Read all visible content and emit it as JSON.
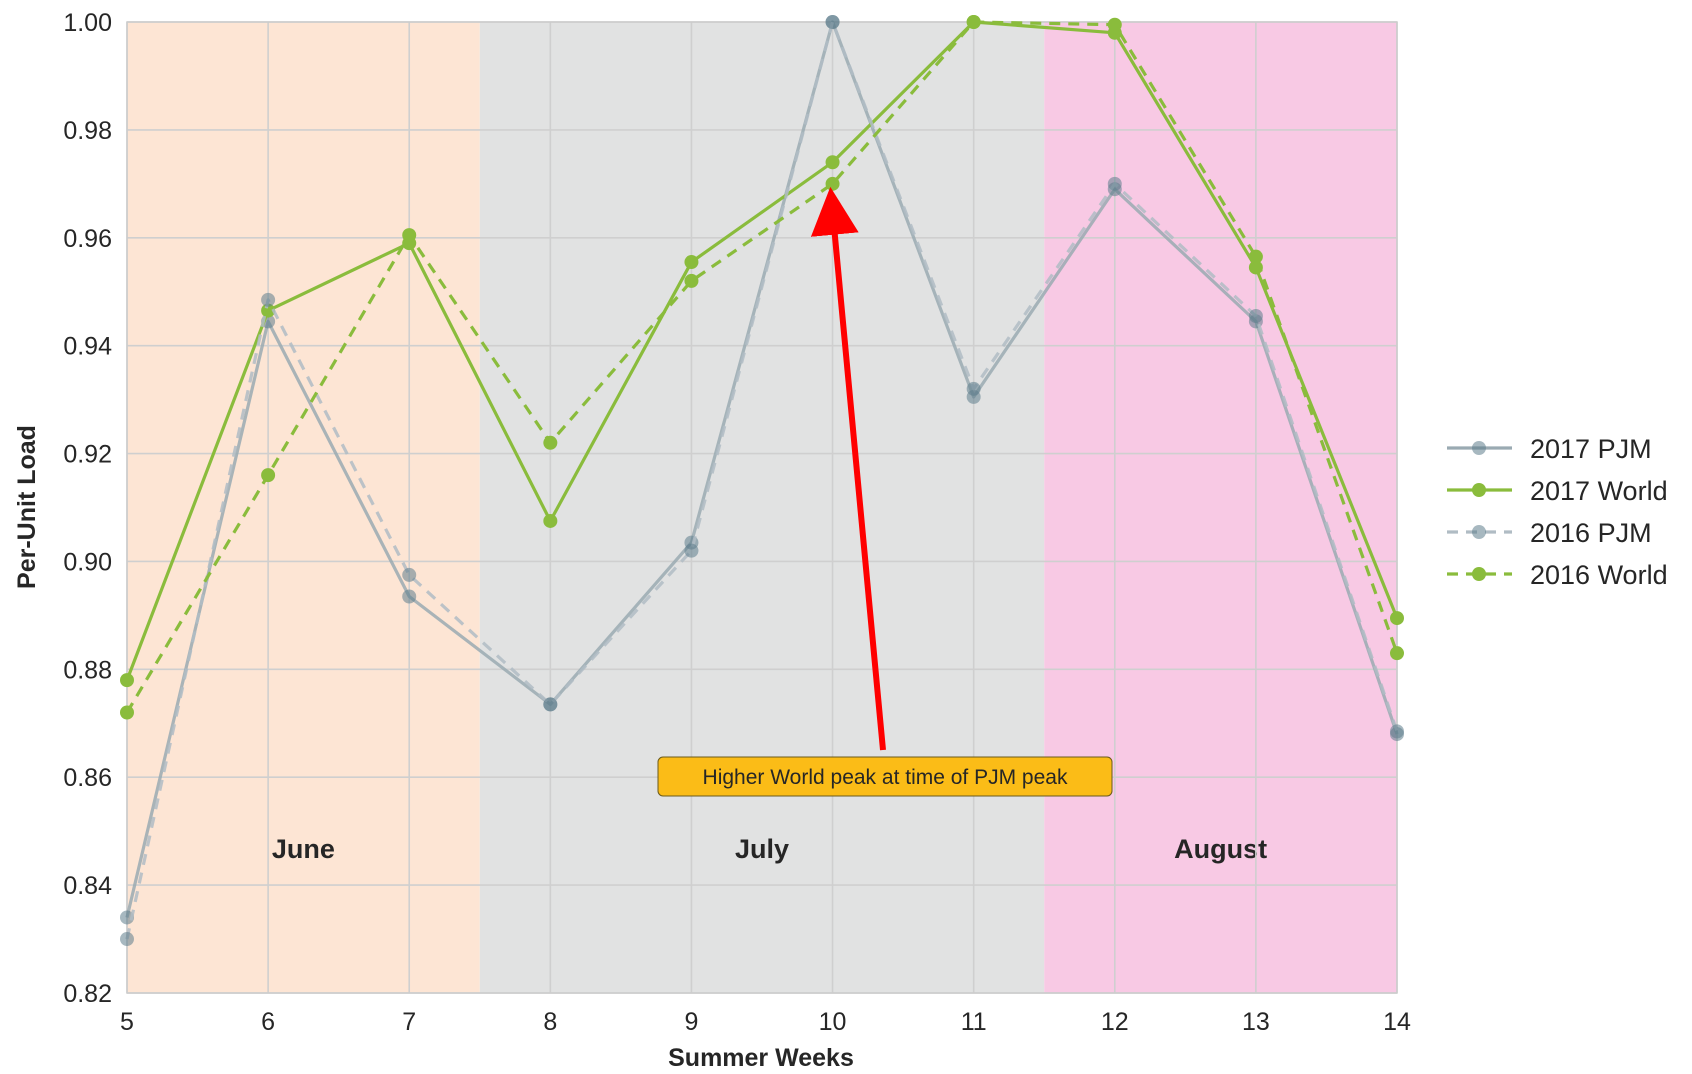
{
  "chart_data": {
    "type": "line",
    "xlabel": "Summer Weeks",
    "ylabel": "Per-Unit Load",
    "x": [
      5,
      6,
      7,
      8,
      9,
      10,
      11,
      12,
      13,
      14
    ],
    "xlim": [
      5,
      14
    ],
    "ylim": [
      0.82,
      1.0
    ],
    "xticks": [
      "5",
      "6",
      "7",
      "8",
      "9",
      "10",
      "11",
      "12",
      "13",
      "14"
    ],
    "yticks": [
      "0.82",
      "0.84",
      "0.86",
      "0.88",
      "0.90",
      "0.92",
      "0.94",
      "0.96",
      "0.98",
      "1.00"
    ],
    "grid": true,
    "legend_position": "right",
    "bands": [
      {
        "label": "June",
        "from": 5,
        "to": 7.5,
        "color": "#fde5d4"
      },
      {
        "label": "July",
        "from": 7.5,
        "to": 11.5,
        "color": "#e1e2e2"
      },
      {
        "label": "August",
        "from": 11.5,
        "to": 14,
        "color": "#f8c9e4"
      }
    ],
    "series": [
      {
        "name": "2017 PJM",
        "values": [
          0.834,
          0.9445,
          0.8935,
          0.8735,
          0.9035,
          1.0,
          0.9305,
          0.969,
          0.9445,
          0.868
        ],
        "color": "#9aaab2",
        "dashed": false
      },
      {
        "name": "2017 World",
        "values": [
          0.878,
          0.9465,
          0.959,
          0.9075,
          0.9555,
          0.974,
          1.0,
          0.998,
          0.9545,
          0.8895
        ],
        "color": "#8abc3c",
        "dashed": false
      },
      {
        "name": "2016 PJM",
        "values": [
          0.83,
          0.9485,
          0.8975,
          0.8735,
          0.902,
          1.0,
          0.932,
          0.97,
          0.9455,
          0.8685
        ],
        "color": "#b0bcc4",
        "dashed": true
      },
      {
        "name": "2016 World",
        "values": [
          0.872,
          0.916,
          0.9605,
          0.922,
          0.952,
          0.97,
          1.0,
          0.9995,
          0.9565,
          0.883
        ],
        "color": "#8abc3c",
        "dashed": true
      }
    ],
    "annotation": {
      "text": "Higher World peak at time of PJM peak",
      "point_x": 10,
      "point_y": 0.9665,
      "arrow_color": "#ff0000",
      "box_color": "#fbbc17"
    }
  }
}
